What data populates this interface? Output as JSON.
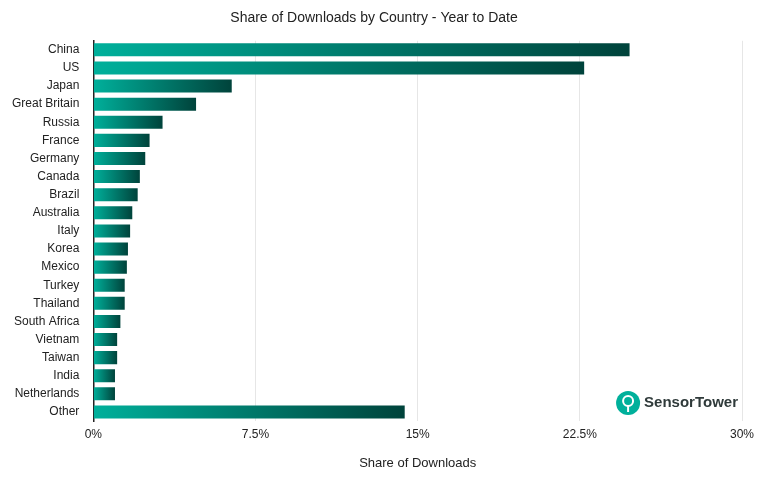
{
  "chart_data": {
    "type": "bar",
    "orientation": "horizontal",
    "title": "Share of Downloads by Country - Year to Date",
    "x_label": "Share of Downloads",
    "categories": [
      "China",
      "US",
      "Japan",
      "Great Britain",
      "Russia",
      "France",
      "Germany",
      "Canada",
      "Brazil",
      "Australia",
      "Italy",
      "Korea",
      "Mexico",
      "Turkey",
      "Thailand",
      "South Africa",
      "Vietnam",
      "Taiwan",
      "India",
      "Netherlands",
      "Other"
    ],
    "values": [
      24.8,
      22.7,
      6.4,
      4.75,
      3.2,
      2.6,
      2.4,
      2.15,
      2.05,
      1.8,
      1.7,
      1.6,
      1.55,
      1.45,
      1.45,
      1.25,
      1.1,
      1.1,
      1.0,
      1.0,
      14.4
    ],
    "color": "#00b09b",
    "xlim": [
      0,
      30
    ],
    "xticks": [
      {
        "value": 0,
        "label": "0%"
      },
      {
        "value": 7.5,
        "label": "7.5%"
      },
      {
        "value": 15,
        "label": "15%"
      },
      {
        "value": 22.5,
        "label": "22.5%"
      },
      {
        "value": 30,
        "label": "30%"
      }
    ],
    "grid": true,
    "annotations": [
      "SensorTower"
    ]
  }
}
